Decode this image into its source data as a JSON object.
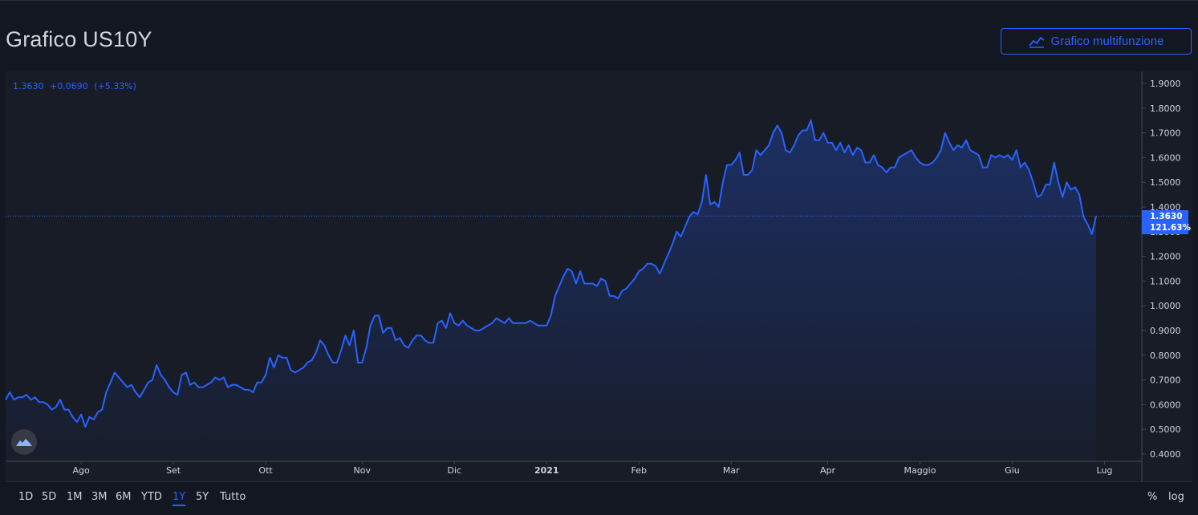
{
  "header": {
    "title": "Grafico US10Y",
    "button_label": "Grafico multifunzione",
    "button_icon": "chart-line-icon"
  },
  "legend": {
    "value": "1.3630",
    "change": "+0.0690",
    "change_pct": "(+5.33%)"
  },
  "price_badge": {
    "value": "1.3630",
    "pct": "121.63%"
  },
  "colors": {
    "accent": "#2962ff",
    "background": "#131722",
    "panel": "#181c27",
    "text": "#d1d4dc"
  },
  "toolbar": {
    "ranges": [
      "1D",
      "5D",
      "1M",
      "3M",
      "6M",
      "YTD",
      "1Y",
      "5Y",
      "Tutto"
    ],
    "active_range": "1Y",
    "right": [
      "%",
      "log"
    ]
  },
  "chart_data": {
    "type": "area",
    "ylim": [
      0.4,
      1.93
    ],
    "yticks": [
      "0.4000",
      "0.5000",
      "0.6000",
      "0.7000",
      "0.8000",
      "0.9000",
      "1.0000",
      "1.1000",
      "1.2000",
      "1.3000",
      "1.4000",
      "1.5000",
      "1.6000",
      "1.7000",
      "1.8000",
      "1.9000"
    ],
    "month_labels": [
      {
        "label": "Ago",
        "index": 18
      },
      {
        "label": "Set",
        "index": 40
      },
      {
        "label": "Ott",
        "index": 62
      },
      {
        "label": "Nov",
        "index": 85
      },
      {
        "label": "Dic",
        "index": 107
      },
      {
        "label": "2021",
        "index": 129
      },
      {
        "label": "Feb",
        "index": 151
      },
      {
        "label": "Mar",
        "index": 173
      },
      {
        "label": "Apr",
        "index": 196
      },
      {
        "label": "Maggio",
        "index": 218
      },
      {
        "label": "Giu",
        "index": 240
      },
      {
        "label": "Lug",
        "index": 262
      }
    ],
    "last_value": 1.363,
    "values": [
      0.62,
      0.65,
      0.62,
      0.63,
      0.63,
      0.64,
      0.62,
      0.63,
      0.61,
      0.61,
      0.6,
      0.58,
      0.59,
      0.62,
      0.58,
      0.58,
      0.55,
      0.53,
      0.56,
      0.51,
      0.55,
      0.54,
      0.57,
      0.58,
      0.65,
      0.69,
      0.73,
      0.71,
      0.69,
      0.67,
      0.68,
      0.65,
      0.63,
      0.66,
      0.69,
      0.7,
      0.76,
      0.72,
      0.7,
      0.67,
      0.65,
      0.64,
      0.72,
      0.73,
      0.68,
      0.69,
      0.67,
      0.67,
      0.68,
      0.69,
      0.71,
      0.7,
      0.71,
      0.67,
      0.68,
      0.68,
      0.67,
      0.66,
      0.66,
      0.65,
      0.69,
      0.69,
      0.72,
      0.79,
      0.75,
      0.8,
      0.79,
      0.79,
      0.74,
      0.73,
      0.74,
      0.75,
      0.77,
      0.78,
      0.81,
      0.86,
      0.84,
      0.8,
      0.77,
      0.77,
      0.82,
      0.88,
      0.84,
      0.9,
      0.77,
      0.77,
      0.83,
      0.92,
      0.96,
      0.96,
      0.89,
      0.91,
      0.91,
      0.86,
      0.87,
      0.84,
      0.83,
      0.86,
      0.88,
      0.88,
      0.86,
      0.85,
      0.85,
      0.93,
      0.94,
      0.91,
      0.97,
      0.93,
      0.92,
      0.94,
      0.92,
      0.91,
      0.9,
      0.9,
      0.91,
      0.92,
      0.93,
      0.95,
      0.94,
      0.93,
      0.95,
      0.93,
      0.93,
      0.93,
      0.93,
      0.94,
      0.93,
      0.92,
      0.92,
      0.92,
      0.96,
      1.04,
      1.08,
      1.12,
      1.15,
      1.14,
      1.09,
      1.14,
      1.09,
      1.09,
      1.09,
      1.08,
      1.11,
      1.1,
      1.04,
      1.04,
      1.03,
      1.06,
      1.07,
      1.09,
      1.11,
      1.14,
      1.15,
      1.17,
      1.17,
      1.16,
      1.13,
      1.17,
      1.21,
      1.25,
      1.3,
      1.28,
      1.32,
      1.36,
      1.38,
      1.37,
      1.42,
      1.53,
      1.41,
      1.42,
      1.4,
      1.5,
      1.57,
      1.57,
      1.59,
      1.62,
      1.53,
      1.53,
      1.55,
      1.63,
      1.61,
      1.63,
      1.65,
      1.7,
      1.73,
      1.7,
      1.63,
      1.62,
      1.65,
      1.69,
      1.71,
      1.71,
      1.75,
      1.67,
      1.67,
      1.7,
      1.66,
      1.66,
      1.63,
      1.66,
      1.62,
      1.65,
      1.61,
      1.64,
      1.63,
      1.58,
      1.58,
      1.61,
      1.57,
      1.56,
      1.54,
      1.56,
      1.56,
      1.6,
      1.61,
      1.62,
      1.63,
      1.6,
      1.58,
      1.57,
      1.57,
      1.58,
      1.6,
      1.63,
      1.7,
      1.66,
      1.63,
      1.65,
      1.64,
      1.67,
      1.63,
      1.62,
      1.61,
      1.56,
      1.56,
      1.61,
      1.6,
      1.61,
      1.6,
      1.61,
      1.59,
      1.63,
      1.56,
      1.58,
      1.55,
      1.5,
      1.44,
      1.45,
      1.49,
      1.49,
      1.58,
      1.5,
      1.44,
      1.5,
      1.47,
      1.48,
      1.45,
      1.36,
      1.33,
      1.29,
      1.363
    ]
  }
}
